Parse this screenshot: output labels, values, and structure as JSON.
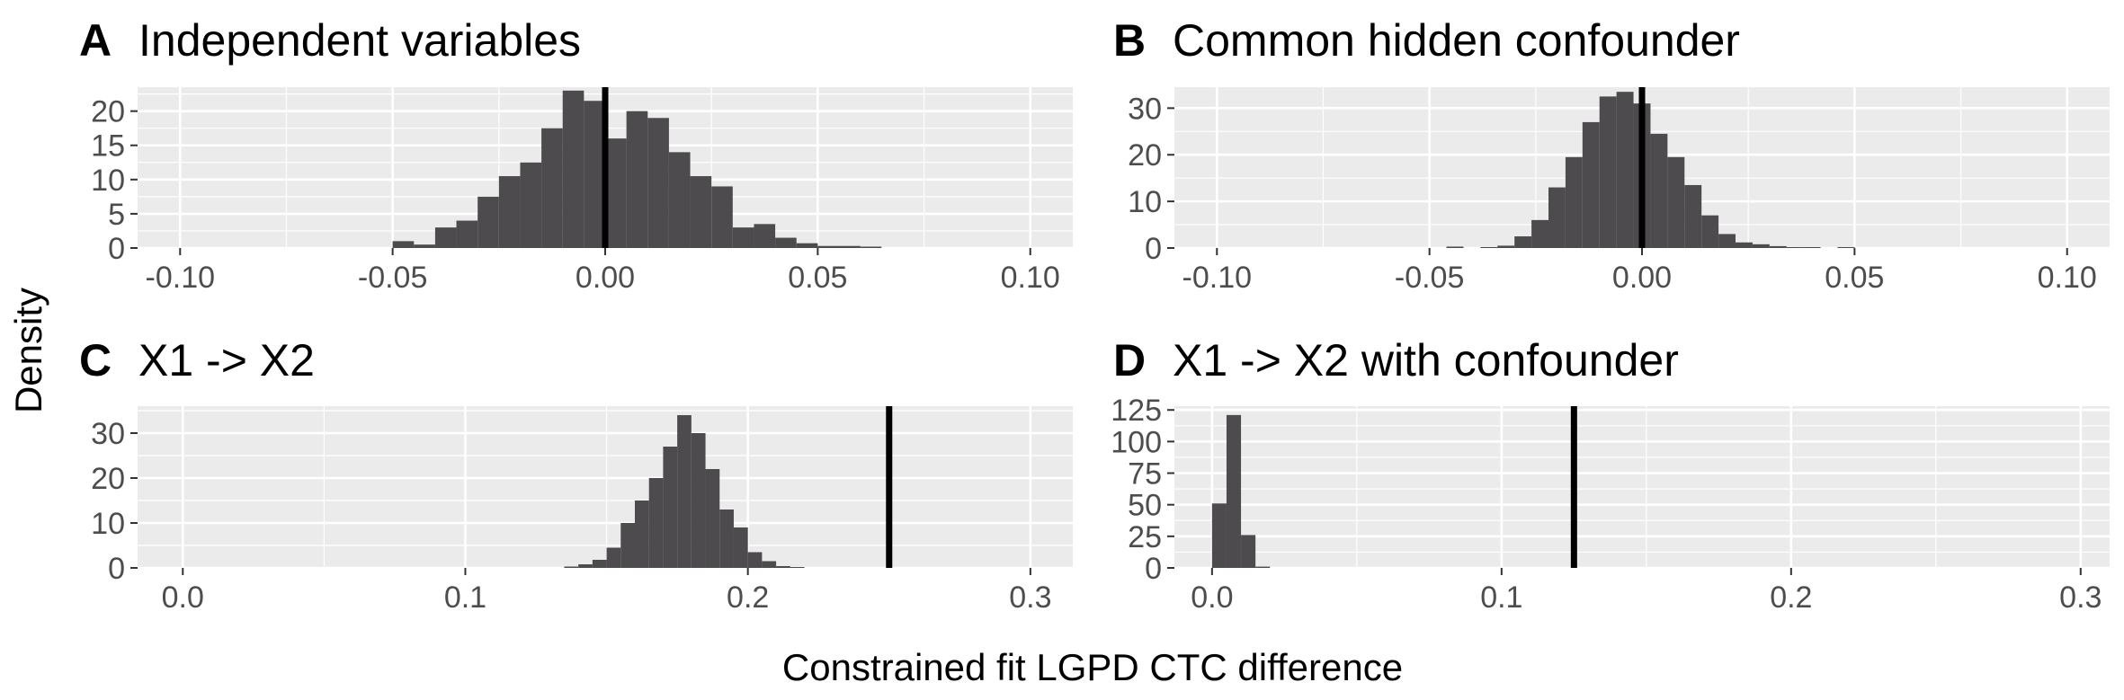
{
  "figure": {
    "ylabel": "Density",
    "xlabel": "Constrained fit LGPD CTC difference"
  },
  "colors": {
    "panel_background": "#ebebeb",
    "gridline": "#ffffff",
    "bar_fill": "#4d4b4d",
    "reference_line": "#000000",
    "tick_text": "#4d4d4d"
  },
  "chart_data": [
    {
      "type": "bar",
      "panel": "A",
      "title": "Independent variables",
      "xlim": [
        -0.11,
        0.11
      ],
      "ylim": [
        0,
        23.5
      ],
      "x_ticks": [
        -0.1,
        -0.05,
        0.0,
        0.05,
        0.1
      ],
      "x_tick_labels": [
        "-0.10",
        "-0.05",
        "0.00",
        "0.05",
        "0.10"
      ],
      "y_ticks": [
        0,
        5,
        10,
        15,
        20
      ],
      "y_tick_labels": [
        "0",
        "5",
        "10",
        "15",
        "20"
      ],
      "reference_line_x": 0.0,
      "bin_width": 0.005,
      "bin_centers": [
        -0.0475,
        -0.0425,
        -0.0375,
        -0.0325,
        -0.0275,
        -0.0225,
        -0.0175,
        -0.0125,
        -0.0075,
        -0.0025,
        0.0025,
        0.0075,
        0.0125,
        0.0175,
        0.0225,
        0.0275,
        0.0325,
        0.0375,
        0.0425,
        0.0475,
        0.0525,
        0.0575,
        0.0625
      ],
      "values": [
        1,
        0.5,
        3,
        4,
        7.5,
        10.5,
        12.5,
        17.5,
        23,
        21.5,
        16,
        20,
        19,
        14,
        10.5,
        9,
        3,
        3.5,
        1.5,
        0.7,
        0.3,
        0.3,
        0.2
      ]
    },
    {
      "type": "bar",
      "panel": "B",
      "title": "Common hidden confounder",
      "xlim": [
        -0.11,
        0.11
      ],
      "ylim": [
        0,
        34.5
      ],
      "x_ticks": [
        -0.1,
        -0.05,
        0.0,
        0.05,
        0.1
      ],
      "x_tick_labels": [
        "-0.10",
        "-0.05",
        "0.00",
        "0.05",
        "0.10"
      ],
      "y_ticks": [
        0,
        10,
        20,
        30
      ],
      "y_tick_labels": [
        "0",
        "10",
        "20",
        "30"
      ],
      "reference_line_x": 0.0,
      "bin_width": 0.004,
      "bin_centers": [
        -0.044,
        -0.036,
        -0.032,
        -0.028,
        -0.024,
        -0.02,
        -0.016,
        -0.012,
        -0.008,
        -0.004,
        0.0,
        0.004,
        0.008,
        0.012,
        0.016,
        0.02,
        0.024,
        0.028,
        0.032,
        0.036,
        0.04,
        0.048
      ],
      "values": [
        0.3,
        0.2,
        0.5,
        2.5,
        6,
        13,
        19.5,
        27,
        32.5,
        33.5,
        31,
        24.5,
        19.5,
        13.5,
        7,
        3,
        1.2,
        0.8,
        0.4,
        0.2,
        0.2,
        0.2
      ]
    },
    {
      "type": "bar",
      "panel": "C",
      "title": "X1 -> X2",
      "xlim": [
        -0.016,
        0.315
      ],
      "ylim": [
        0,
        36
      ],
      "x_ticks": [
        0.0,
        0.1,
        0.2,
        0.3
      ],
      "x_tick_labels": [
        "0.0",
        "0.1",
        "0.2",
        "0.3"
      ],
      "y_ticks": [
        0,
        10,
        20,
        30
      ],
      "y_tick_labels": [
        "0",
        "10",
        "20",
        "30"
      ],
      "reference_line_x": 0.25,
      "bin_width": 0.005,
      "bin_centers": [
        0.1375,
        0.1425,
        0.1475,
        0.1525,
        0.1575,
        0.1625,
        0.1675,
        0.1725,
        0.1775,
        0.1825,
        0.1875,
        0.1925,
        0.1975,
        0.2025,
        0.2075,
        0.2125,
        0.2175
      ],
      "values": [
        0.3,
        0.8,
        1.8,
        4.5,
        10,
        15,
        20,
        27,
        34,
        30,
        22,
        13,
        9,
        3.5,
        1.5,
        0.4,
        0.2
      ]
    },
    {
      "type": "bar",
      "panel": "D",
      "title": "X1 -> X2 with confounder",
      "xlim": [
        -0.013,
        0.31
      ],
      "ylim": [
        0,
        128
      ],
      "x_ticks": [
        0.0,
        0.1,
        0.2,
        0.3
      ],
      "x_tick_labels": [
        "0.0",
        "0.1",
        "0.2",
        "0.3"
      ],
      "y_ticks": [
        0,
        25,
        50,
        75,
        100,
        125
      ],
      "y_tick_labels": [
        "0",
        "25",
        "50",
        "75",
        "100",
        "125"
      ],
      "reference_line_x": 0.125,
      "bin_width": 0.005,
      "bin_centers": [
        0.0025,
        0.0075,
        0.0125,
        0.0175
      ],
      "values": [
        51,
        121,
        26,
        1
      ]
    }
  ]
}
